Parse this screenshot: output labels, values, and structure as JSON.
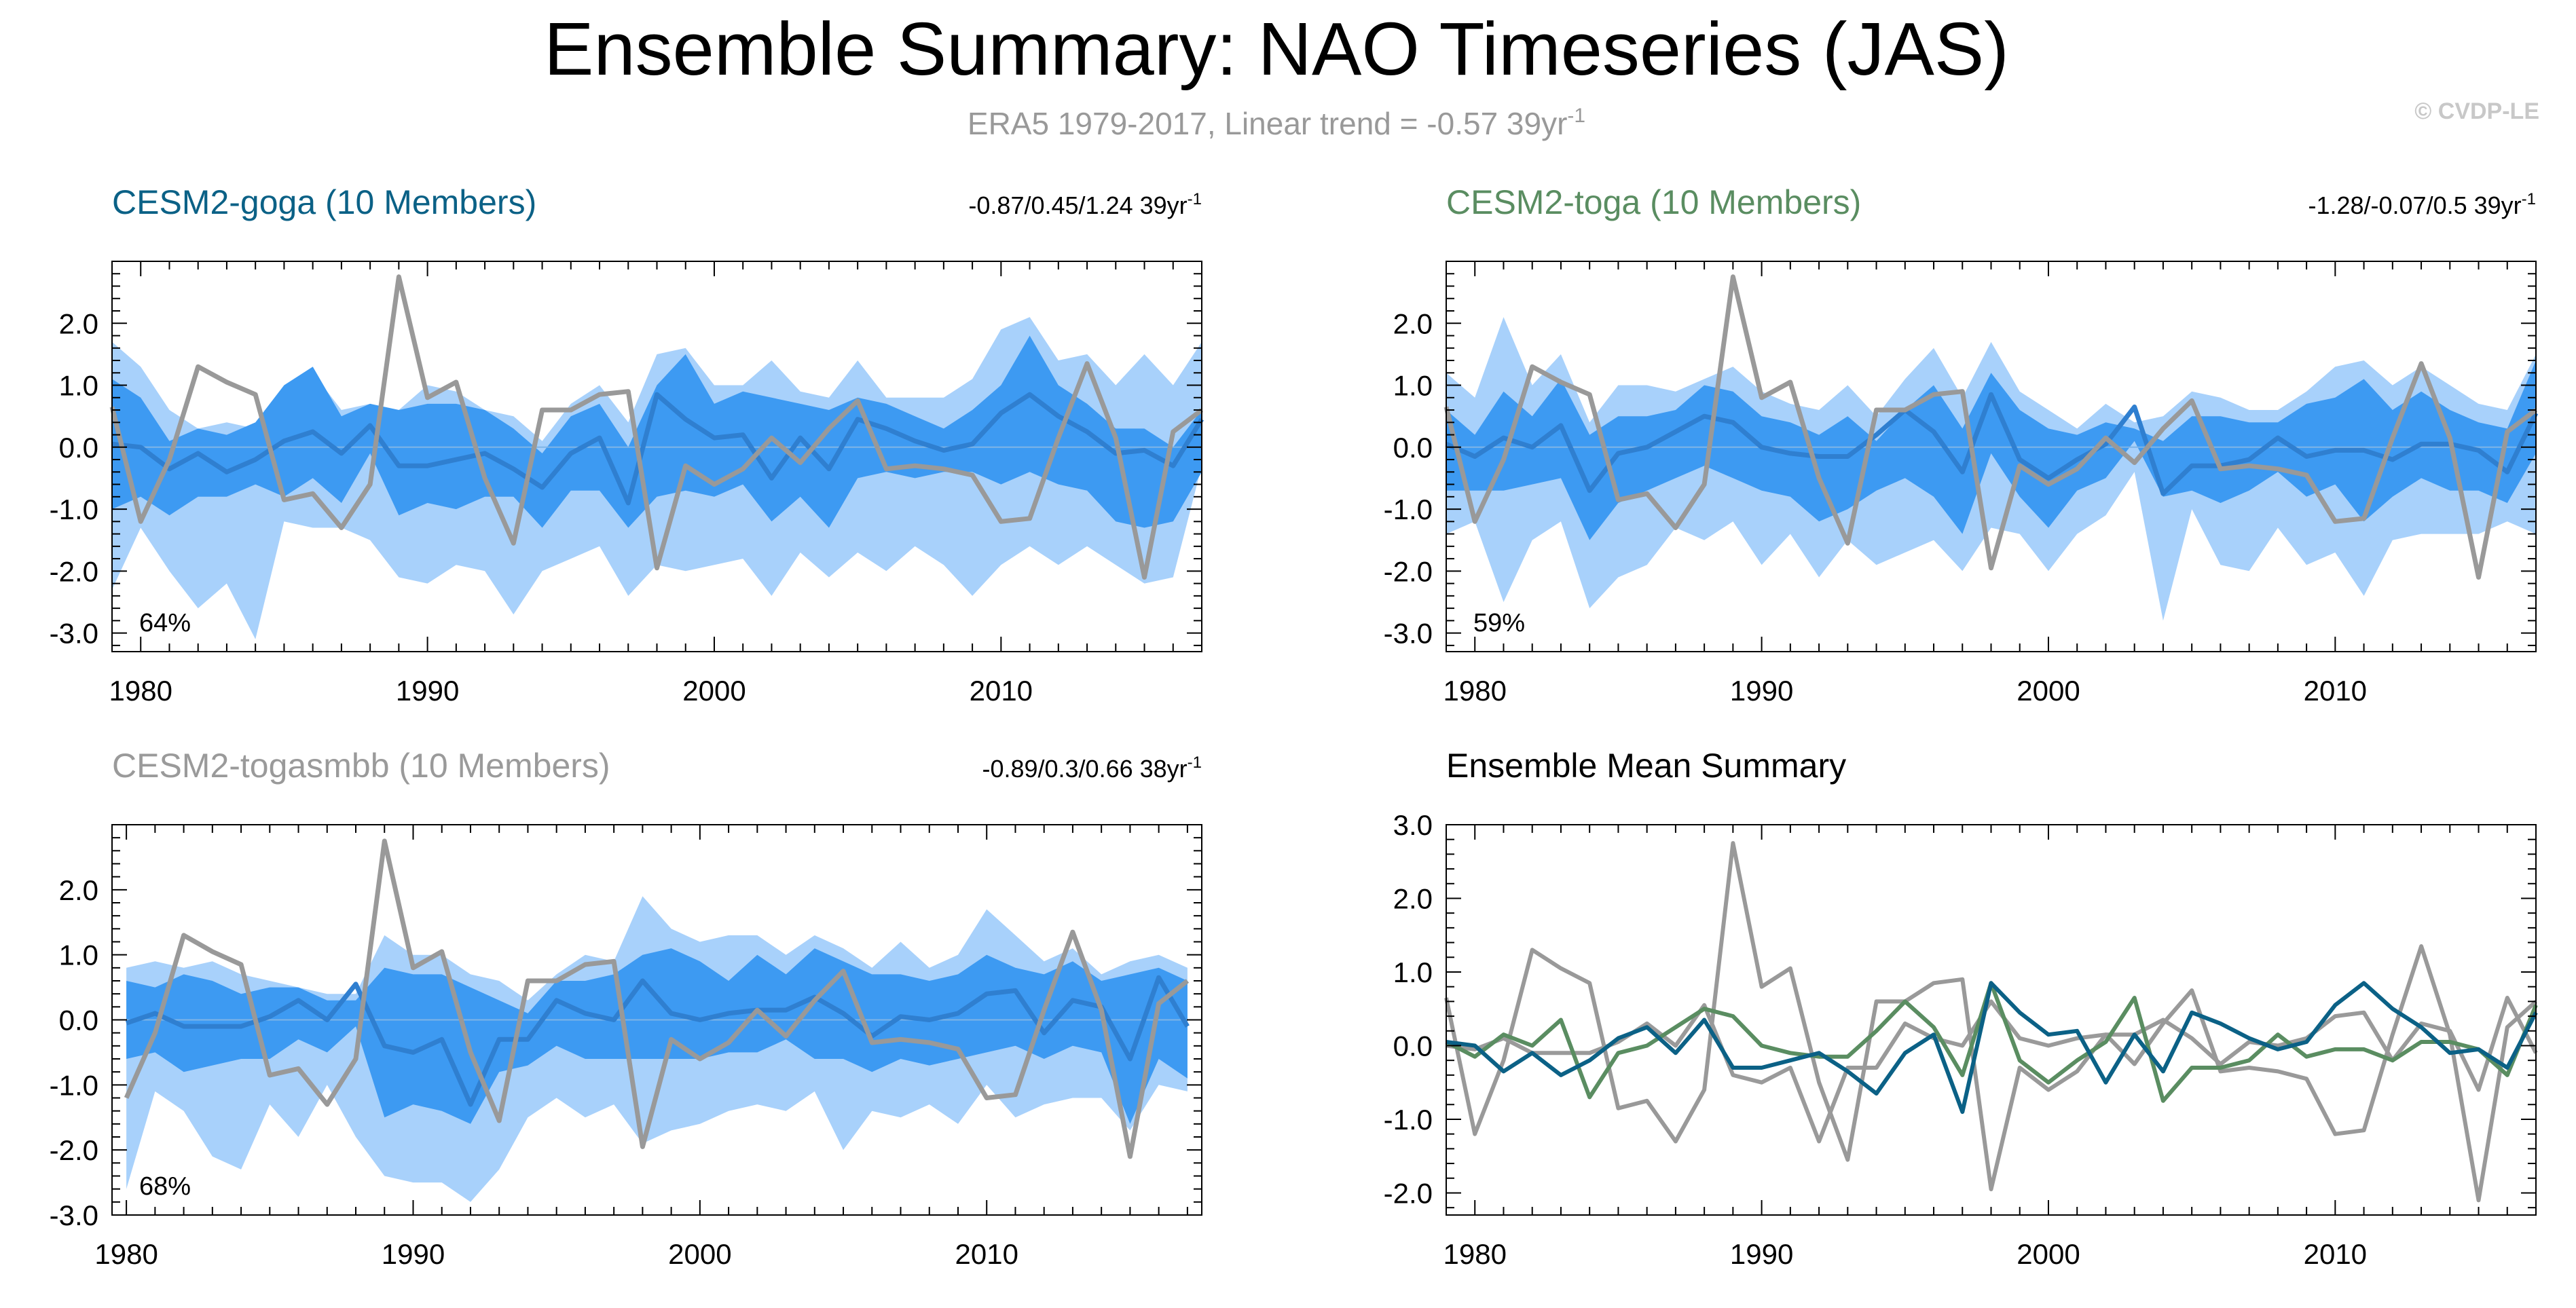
{
  "title": "Ensemble Summary: NAO Timeseries (JAS)",
  "subtitle": "ERA5 1979-2017, Linear trend = -0.57 39yr",
  "subtitle_sup": "-1",
  "credit": "© CVDP-LE",
  "colors": {
    "outer_band": "#a8d1fb",
    "inner_band": "#3d9af2",
    "mean_line": "#2f7fd0",
    "obs_line": "#999999",
    "goga": "#0b6186",
    "toga": "#5a8d61",
    "togasmbb": "#9a9a9a"
  },
  "chart_data": [
    {
      "id": "goga",
      "type": "area",
      "title": "CESM2-goga (10 Members)",
      "title_color": "#0b6186",
      "stats": "-0.87/0.45/1.24 39yr",
      "stats_sup": "-1",
      "percent": "64%",
      "x_ticks": [
        "1980",
        "1990",
        "2000",
        "2010"
      ],
      "y_ticks": [
        "2.0",
        "1.0",
        "0.0",
        "-1.0",
        "-2.0",
        "-3.0"
      ],
      "x_range": [
        1979,
        2017
      ],
      "y_range": [
        -3.3,
        3.0
      ],
      "years": [
        1979,
        1980,
        1981,
        1982,
        1983,
        1984,
        1985,
        1986,
        1987,
        1988,
        1989,
        1990,
        1991,
        1992,
        1993,
        1994,
        1995,
        1996,
        1997,
        1998,
        1999,
        2000,
        2001,
        2002,
        2003,
        2004,
        2005,
        2006,
        2007,
        2008,
        2009,
        2010,
        2011,
        2012,
        2013,
        2014,
        2015,
        2016,
        2017
      ],
      "outer_upper": [
        1.7,
        1.3,
        0.6,
        0.3,
        0.4,
        0.3,
        0.9,
        1.2,
        0.6,
        0.7,
        0.6,
        1.0,
        0.9,
        0.6,
        0.5,
        0.1,
        0.7,
        1.0,
        0.4,
        1.5,
        1.6,
        1.0,
        1.0,
        1.4,
        0.9,
        0.8,
        1.4,
        0.8,
        0.8,
        0.8,
        1.1,
        1.9,
        2.1,
        1.4,
        1.5,
        1.0,
        1.5,
        1.0,
        1.7
      ],
      "inner_upper": [
        1.1,
        0.8,
        0.1,
        0.3,
        0.2,
        0.4,
        1.0,
        1.3,
        0.5,
        0.7,
        0.6,
        0.7,
        0.7,
        0.6,
        0.3,
        -0.1,
        0.5,
        0.7,
        0.0,
        1.0,
        1.5,
        0.7,
        0.9,
        0.8,
        0.7,
        0.6,
        0.8,
        0.7,
        0.5,
        0.3,
        0.6,
        1.0,
        1.8,
        1.0,
        0.7,
        0.3,
        0.3,
        0.0,
        0.6
      ],
      "mean": [
        0.05,
        0.0,
        -0.35,
        -0.1,
        -0.4,
        -0.2,
        0.1,
        0.25,
        -0.1,
        0.35,
        -0.3,
        -0.3,
        -0.2,
        -0.1,
        -0.35,
        -0.65,
        -0.1,
        0.15,
        -0.9,
        0.85,
        0.45,
        0.15,
        0.2,
        -0.5,
        0.15,
        -0.35,
        0.45,
        0.3,
        0.1,
        -0.05,
        0.05,
        0.55,
        0.85,
        0.5,
        0.25,
        -0.1,
        -0.05,
        -0.3,
        0.45
      ],
      "inner_lower": [
        -1.0,
        -0.8,
        -1.1,
        -0.8,
        -0.8,
        -0.6,
        -0.8,
        -0.5,
        -0.9,
        -0.1,
        -1.1,
        -0.9,
        -1.0,
        -0.8,
        -0.8,
        -1.3,
        -0.7,
        -0.7,
        -1.3,
        -0.8,
        -0.7,
        -0.8,
        -0.6,
        -1.2,
        -0.8,
        -1.3,
        -0.5,
        -0.4,
        -0.5,
        -0.4,
        -0.4,
        -0.6,
        -0.4,
        -0.6,
        -0.7,
        -1.2,
        -1.3,
        -1.2,
        -0.4
      ],
      "outer_lower": [
        -2.3,
        -1.3,
        -2.0,
        -2.6,
        -2.2,
        -3.1,
        -1.2,
        -1.3,
        -1.3,
        -1.5,
        -2.1,
        -2.2,
        -1.9,
        -2.0,
        -2.7,
        -2.0,
        -1.8,
        -1.6,
        -2.4,
        -1.9,
        -2.0,
        -1.9,
        -1.8,
        -2.4,
        -1.7,
        -2.1,
        -1.7,
        -2.0,
        -1.6,
        -1.9,
        -2.4,
        -1.9,
        -1.6,
        -1.9,
        -1.6,
        -1.9,
        -2.2,
        -2.1,
        -0.3
      ],
      "obs": [
        0.65,
        -1.2,
        -0.2,
        1.3,
        1.05,
        0.85,
        -0.85,
        -0.75,
        -1.3,
        -0.6,
        2.75,
        0.8,
        1.05,
        -0.5,
        -1.55,
        0.6,
        0.6,
        0.85,
        0.9,
        -1.95,
        -0.3,
        -0.6,
        -0.35,
        0.15,
        -0.25,
        0.3,
        0.75,
        -0.35,
        -0.3,
        -0.35,
        -0.45,
        -1.2,
        -1.15,
        0.15,
        1.35,
        0.15,
        -2.1,
        0.25,
        0.6
      ]
    },
    {
      "id": "toga",
      "type": "area",
      "title": "CESM2-toga (10 Members)",
      "title_color": "#5a8d61",
      "stats": "-1.28/-0.07/0.5 39yr",
      "stats_sup": "-1",
      "percent": "59%",
      "x_ticks": [
        "1980",
        "1990",
        "2000",
        "2010"
      ],
      "y_ticks": [
        "2.0",
        "1.0",
        "0.0",
        "-1.0",
        "-2.0",
        "-3.0"
      ],
      "x_range": [
        1979,
        2017
      ],
      "y_range": [
        -3.3,
        3.0
      ],
      "years": [
        1979,
        1980,
        1981,
        1982,
        1983,
        1984,
        1985,
        1986,
        1987,
        1988,
        1989,
        1990,
        1991,
        1992,
        1993,
        1994,
        1995,
        1996,
        1997,
        1998,
        1999,
        2000,
        2001,
        2002,
        2003,
        2004,
        2005,
        2006,
        2007,
        2008,
        2009,
        2010,
        2011,
        2012,
        2013,
        2014,
        2015,
        2016,
        2017
      ],
      "outer_upper": [
        1.2,
        0.8,
        2.1,
        1.0,
        1.5,
        0.4,
        1.0,
        1.0,
        0.9,
        1.1,
        1.3,
        0.9,
        0.7,
        0.6,
        1.0,
        0.5,
        1.1,
        1.6,
        0.8,
        1.7,
        0.9,
        0.6,
        0.3,
        0.7,
        0.4,
        0.5,
        0.9,
        0.8,
        0.6,
        0.6,
        0.9,
        1.3,
        1.4,
        1.0,
        1.3,
        1.0,
        0.7,
        0.6,
        1.5
      ],
      "inner_upper": [
        0.6,
        0.2,
        0.9,
        0.5,
        1.1,
        0.2,
        0.5,
        0.5,
        0.6,
        1.0,
        0.9,
        0.5,
        0.4,
        0.2,
        0.5,
        0.1,
        0.6,
        1.0,
        0.3,
        1.2,
        0.6,
        0.3,
        0.2,
        0.4,
        0.3,
        0.1,
        0.5,
        0.5,
        0.4,
        0.4,
        0.7,
        0.8,
        1.1,
        0.6,
        0.9,
        0.6,
        0.4,
        0.3,
        1.4
      ],
      "mean": [
        0.05,
        -0.15,
        0.15,
        0.0,
        0.35,
        -0.7,
        -0.1,
        0.0,
        0.25,
        0.5,
        0.4,
        0.0,
        -0.1,
        -0.15,
        -0.15,
        0.2,
        0.6,
        0.25,
        -0.4,
        0.85,
        -0.2,
        -0.5,
        -0.2,
        0.05,
        0.65,
        -0.75,
        -0.3,
        -0.3,
        -0.2,
        0.15,
        -0.15,
        -0.05,
        -0.05,
        -0.2,
        0.05,
        0.05,
        -0.05,
        -0.4,
        0.55
      ],
      "inner_lower": [
        -0.7,
        -0.7,
        -0.7,
        -0.6,
        -0.5,
        -1.5,
        -0.9,
        -0.7,
        -0.5,
        -0.3,
        -0.5,
        -0.7,
        -0.8,
        -1.2,
        -1.0,
        -0.7,
        -0.5,
        -0.8,
        -1.4,
        -0.1,
        -0.8,
        -1.3,
        -0.7,
        -0.5,
        0.1,
        -0.8,
        -0.7,
        -0.9,
        -0.7,
        -0.4,
        -0.8,
        -0.6,
        -1.2,
        -0.8,
        -0.5,
        -0.7,
        -0.7,
        -0.9,
        -0.1
      ],
      "outer_lower": [
        -1.4,
        -1.2,
        -2.5,
        -1.5,
        -1.2,
        -2.6,
        -2.1,
        -1.9,
        -1.3,
        -1.5,
        -1.2,
        -1.9,
        -1.4,
        -2.1,
        -1.5,
        -1.9,
        -1.7,
        -1.5,
        -2.0,
        -1.3,
        -1.4,
        -2.0,
        -1.4,
        -1.1,
        -0.4,
        -2.8,
        -1.0,
        -1.9,
        -2.0,
        -1.3,
        -1.9,
        -1.7,
        -2.4,
        -1.5,
        -1.4,
        -1.4,
        -1.4,
        -1.2,
        -1.4
      ],
      "obs": [
        0.65,
        -1.2,
        -0.2,
        1.3,
        1.05,
        0.85,
        -0.85,
        -0.75,
        -1.3,
        -0.6,
        2.75,
        0.8,
        1.05,
        -0.5,
        -1.55,
        0.6,
        0.6,
        0.85,
        0.9,
        -1.95,
        -0.3,
        -0.6,
        -0.35,
        0.15,
        -0.25,
        0.3,
        0.75,
        -0.35,
        -0.3,
        -0.35,
        -0.45,
        -1.2,
        -1.15,
        0.15,
        1.35,
        0.15,
        -2.1,
        0.25,
        0.6
      ]
    },
    {
      "id": "togasmbb",
      "type": "area",
      "title": "CESM2-togasmbb (10 Members)",
      "title_color": "#9a9a9a",
      "stats": "-0.89/0.3/0.66 38yr",
      "stats_sup": "-1",
      "percent": "68%",
      "x_ticks": [
        "1980",
        "1990",
        "2000",
        "2010"
      ],
      "y_ticks": [
        "2.0",
        "1.0",
        "0.0",
        "-1.0",
        "-2.0",
        "-3.0"
      ],
      "x_range": [
        1979.5,
        2017.5
      ],
      "y_range": [
        -3.0,
        3.0
      ],
      "years": [
        1980,
        1981,
        1982,
        1983,
        1984,
        1985,
        1986,
        1987,
        1988,
        1989,
        1990,
        1991,
        1992,
        1993,
        1994,
        1995,
        1996,
        1997,
        1998,
        1999,
        2000,
        2001,
        2002,
        2003,
        2004,
        2005,
        2006,
        2007,
        2008,
        2009,
        2010,
        2011,
        2012,
        2013,
        2014,
        2015,
        2016,
        2017
      ],
      "outer_upper": [
        0.8,
        0.9,
        0.8,
        0.9,
        0.7,
        0.6,
        0.5,
        0.4,
        0.4,
        1.3,
        1.0,
        1.0,
        0.7,
        0.6,
        0.3,
        0.7,
        1.0,
        0.9,
        1.9,
        1.4,
        1.2,
        1.3,
        1.3,
        1.0,
        1.3,
        1.1,
        0.8,
        1.2,
        0.8,
        1.0,
        1.7,
        1.3,
        0.9,
        1.1,
        0.7,
        0.9,
        1.0,
        0.8
      ],
      "inner_upper": [
        0.6,
        0.5,
        0.7,
        0.6,
        0.4,
        0.5,
        0.5,
        0.3,
        0.3,
        0.8,
        0.7,
        0.7,
        0.5,
        0.3,
        0.1,
        0.6,
        0.6,
        0.7,
        1.0,
        1.1,
        0.9,
        0.6,
        1.0,
        0.7,
        1.1,
        0.9,
        0.7,
        0.7,
        0.6,
        0.7,
        1.0,
        0.8,
        0.7,
        0.9,
        0.6,
        0.7,
        0.8,
        0.6
      ],
      "mean": [
        -0.05,
        0.1,
        -0.1,
        -0.1,
        -0.1,
        0.05,
        0.3,
        0.0,
        0.55,
        -0.4,
        -0.5,
        -0.3,
        -1.3,
        -0.3,
        -0.3,
        0.3,
        0.1,
        0.0,
        0.6,
        0.1,
        0.0,
        0.1,
        0.15,
        0.15,
        0.35,
        0.1,
        -0.25,
        0.05,
        0.0,
        0.1,
        0.4,
        0.45,
        -0.2,
        0.3,
        0.2,
        -0.6,
        0.65,
        -0.1
      ],
      "inner_lower": [
        -0.6,
        -0.5,
        -0.8,
        -0.7,
        -0.6,
        -0.6,
        -0.3,
        -0.5,
        -0.1,
        -1.5,
        -1.3,
        -1.4,
        -1.6,
        -0.8,
        -0.7,
        -0.4,
        -0.6,
        -0.6,
        -0.6,
        -0.6,
        -0.6,
        -0.5,
        -0.5,
        -0.3,
        -0.6,
        -0.6,
        -0.8,
        -0.6,
        -0.7,
        -0.6,
        -0.5,
        -0.4,
        -0.6,
        -0.4,
        -0.5,
        -1.6,
        -0.6,
        -0.9
      ],
      "outer_lower": [
        -2.6,
        -1.1,
        -1.4,
        -2.1,
        -2.3,
        -1.3,
        -1.8,
        -1.0,
        -1.8,
        -2.4,
        -2.5,
        -2.5,
        -2.8,
        -2.3,
        -1.5,
        -1.2,
        -1.5,
        -1.3,
        -1.9,
        -1.7,
        -1.6,
        -1.4,
        -1.3,
        -1.4,
        -1.1,
        -2.0,
        -1.4,
        -1.5,
        -1.3,
        -1.6,
        -1.0,
        -1.5,
        -1.3,
        -1.2,
        -1.2,
        -1.7,
        -1.0,
        -1.1
      ],
      "obs": [
        -1.2,
        -0.2,
        1.3,
        1.05,
        0.85,
        -0.85,
        -0.75,
        -1.3,
        -0.6,
        2.75,
        0.8,
        1.05,
        -0.5,
        -1.55,
        0.6,
        0.6,
        0.85,
        0.9,
        -1.95,
        -0.3,
        -0.6,
        -0.35,
        0.15,
        -0.25,
        0.3,
        0.75,
        -0.35,
        -0.3,
        -0.35,
        -0.45,
        -1.2,
        -1.15,
        0.15,
        1.35,
        0.15,
        -2.1,
        0.25,
        0.6
      ]
    },
    {
      "id": "mean_summary",
      "type": "line",
      "title": "Ensemble Mean Summary",
      "title_color": "#000000",
      "x_ticks": [
        "1980",
        "1990",
        "2000",
        "2010"
      ],
      "y_ticks": [
        "3.0",
        "2.0",
        "1.0",
        "0.0",
        "-1.0",
        "-2.0"
      ],
      "x_range": [
        1979,
        2017
      ],
      "y_range": [
        -2.3,
        3.0
      ],
      "years": [
        1979,
        1980,
        1981,
        1982,
        1983,
        1984,
        1985,
        1986,
        1987,
        1988,
        1989,
        1990,
        1991,
        1992,
        1993,
        1994,
        1995,
        1996,
        1997,
        1998,
        1999,
        2000,
        2001,
        2002,
        2003,
        2004,
        2005,
        2006,
        2007,
        2008,
        2009,
        2010,
        2011,
        2012,
        2013,
        2014,
        2015,
        2016,
        2017
      ],
      "series": [
        {
          "name": "ERA5",
          "color": "#999999",
          "values": [
            0.65,
            -1.2,
            -0.2,
            1.3,
            1.05,
            0.85,
            -0.85,
            -0.75,
            -1.3,
            -0.6,
            2.75,
            0.8,
            1.05,
            -0.5,
            -1.55,
            0.6,
            0.6,
            0.85,
            0.9,
            -1.95,
            -0.3,
            -0.6,
            -0.35,
            0.15,
            -0.25,
            0.3,
            0.75,
            -0.35,
            -0.3,
            -0.35,
            -0.45,
            -1.2,
            -1.15,
            0.15,
            1.35,
            0.15,
            -2.1,
            0.25,
            0.6
          ]
        },
        {
          "name": "CESM2-togasmbb",
          "color": "#9a9a9a",
          "values": [
            0.0,
            -0.05,
            0.1,
            -0.1,
            -0.1,
            -0.1,
            0.05,
            0.3,
            0.0,
            0.55,
            -0.4,
            -0.5,
            -0.3,
            -1.3,
            -0.3,
            -0.3,
            0.3,
            0.1,
            0.0,
            0.6,
            0.1,
            0.0,
            0.1,
            0.15,
            0.15,
            0.35,
            0.1,
            -0.25,
            0.05,
            0.0,
            0.1,
            0.4,
            0.45,
            -0.2,
            0.3,
            0.2,
            -0.6,
            0.65,
            -0.1
          ]
        },
        {
          "name": "CESM2-toga",
          "color": "#5a8d61",
          "values": [
            0.05,
            -0.15,
            0.15,
            0.0,
            0.35,
            -0.7,
            -0.1,
            0.0,
            0.25,
            0.5,
            0.4,
            0.0,
            -0.1,
            -0.15,
            -0.15,
            0.2,
            0.6,
            0.25,
            -0.4,
            0.85,
            -0.2,
            -0.5,
            -0.2,
            0.05,
            0.65,
            -0.75,
            -0.3,
            -0.3,
            -0.2,
            0.15,
            -0.15,
            -0.05,
            -0.05,
            -0.2,
            0.05,
            0.05,
            -0.05,
            -0.4,
            0.55
          ]
        },
        {
          "name": "CESM2-goga",
          "color": "#0b6186",
          "values": [
            0.05,
            0.0,
            -0.35,
            -0.1,
            -0.4,
            -0.2,
            0.1,
            0.25,
            -0.1,
            0.35,
            -0.3,
            -0.3,
            -0.2,
            -0.1,
            -0.35,
            -0.65,
            -0.1,
            0.15,
            -0.9,
            0.85,
            0.45,
            0.15,
            0.2,
            -0.5,
            0.15,
            -0.35,
            0.45,
            0.3,
            0.1,
            -0.05,
            0.05,
            0.55,
            0.85,
            0.5,
            0.25,
            -0.1,
            -0.05,
            -0.3,
            0.45
          ]
        }
      ]
    }
  ]
}
